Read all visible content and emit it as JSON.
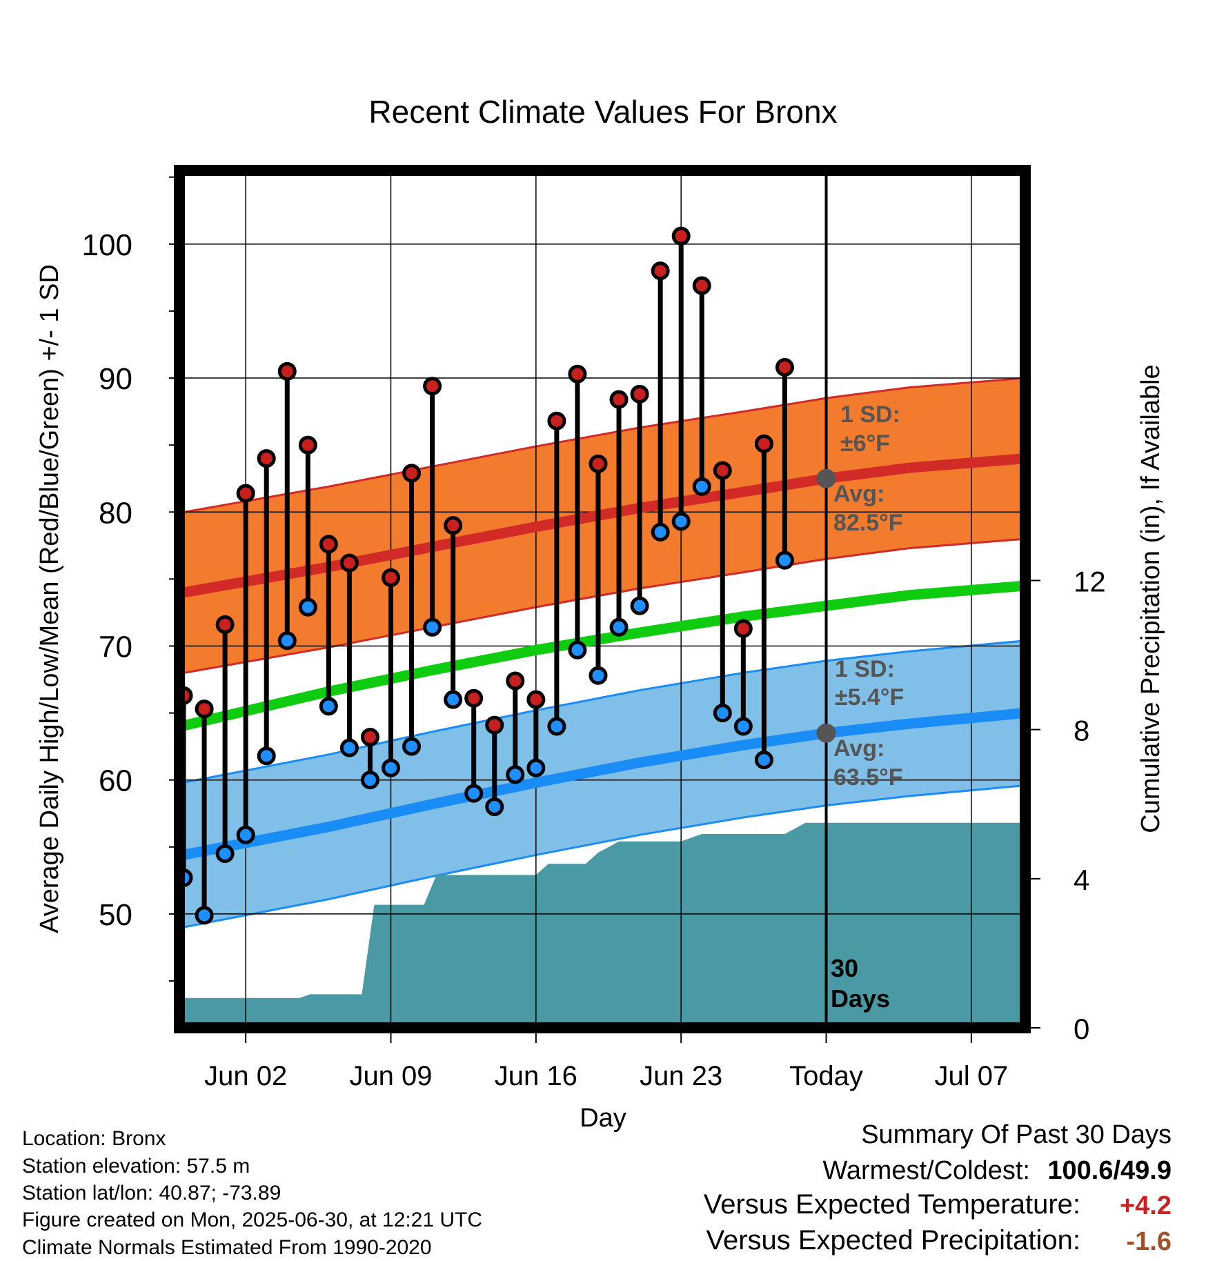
{
  "chart_data": {
    "type": "line",
    "title": "Recent Climate Values For Bronx",
    "xlabel": "Day",
    "ylabel": "Average Daily High/Low/Mean (Red/Blue/Green) +/- 1 SD",
    "y2label": "Cumulative Precipitation (in), If Available",
    "ylim": [
      41.5,
      105.5
    ],
    "y2lim": [
      0,
      23.0
    ],
    "xlim": [
      -2.2,
      38.6
    ],
    "grid": true,
    "yticks": [
      50,
      60,
      70,
      80,
      90,
      100
    ],
    "y2ticks": [
      0,
      4,
      8,
      12
    ],
    "xtick_labels": [
      {
        "day": 1,
        "label": "Jun 02"
      },
      {
        "day": 8,
        "label": "Jun 09"
      },
      {
        "day": 15,
        "label": "Jun 16"
      },
      {
        "day": 22,
        "label": "Jun 23"
      },
      {
        "day": 29,
        "label": "Today"
      },
      {
        "day": 36,
        "label": "Jul 07"
      }
    ],
    "today_day": 29,
    "daily_days": [
      -2,
      -1,
      0,
      1,
      2,
      3,
      4,
      5,
      6,
      7,
      8,
      9,
      10,
      11,
      12,
      13,
      14,
      15,
      16,
      17,
      18,
      19,
      20,
      21,
      22,
      23,
      24,
      25,
      26,
      27,
      28
    ],
    "series": [
      {
        "name": "High",
        "color": "#c8201f",
        "values": [
          66.3,
          65.3,
          71.6,
          81.4,
          84.0,
          90.5,
          85.0,
          77.6,
          76.2,
          63.2,
          75.1,
          82.9,
          89.4,
          79.0,
          66.1,
          64.1,
          67.4,
          66.0,
          86.8,
          90.3,
          83.6,
          88.4,
          88.8,
          98.0,
          100.6,
          96.9,
          83.1,
          71.3,
          85.1,
          90.8,
          null
        ]
      },
      {
        "name": "Low",
        "color": "#1f8fff",
        "values": [
          52.7,
          49.9,
          54.5,
          55.9,
          61.8,
          70.4,
          72.9,
          65.5,
          62.4,
          60.0,
          60.9,
          62.5,
          71.4,
          66.0,
          59.0,
          58.0,
          60.4,
          60.9,
          64.0,
          69.7,
          67.8,
          71.4,
          73.0,
          78.5,
          79.3,
          81.9,
          65.0,
          64.0,
          61.5,
          76.4,
          null
        ]
      }
    ],
    "normals": {
      "x": [
        -2.7,
        5,
        10,
        15,
        20,
        25,
        29,
        33,
        38.6
      ],
      "high_avg": [
        73.8,
        75.9,
        77.4,
        78.9,
        80.3,
        81.5,
        82.5,
        83.3,
        84.0
      ],
      "high_sd": 6,
      "mean_avg": [
        63.8,
        66.6,
        68.2,
        69.7,
        71.0,
        72.2,
        73.0,
        73.8,
        74.5
      ],
      "low_avg": [
        54.2,
        56.5,
        58.2,
        59.8,
        61.3,
        62.6,
        63.5,
        64.2,
        65.0
      ],
      "low_sd": 5.4,
      "colors": {
        "high_band": "#f27b2e",
        "high_line": "#d22a26",
        "mean_line": "#10cc10",
        "low_band": "#80c0e8",
        "low_line": "#1a8cf5"
      }
    },
    "precip": {
      "color": "#4a9aa6",
      "x": [
        -2.7,
        -2.0,
        2.9,
        3.6,
        4.1,
        6.6,
        7.2,
        9.6,
        10.2,
        15.0,
        15.6,
        17.4,
        18.0,
        19.0,
        22.0,
        23.0,
        27.0,
        28.0,
        38.6
      ],
      "values": [
        0.0,
        0.8,
        0.8,
        0.8,
        0.9,
        0.9,
        3.3,
        3.3,
        4.1,
        4.1,
        4.4,
        4.4,
        4.7,
        5.0,
        5.0,
        5.2,
        5.2,
        5.5,
        5.5
      ]
    },
    "annotations": {
      "high_sd": "1 SD:",
      "high_sd_value": "±6°F",
      "high_avg_label": "Avg:",
      "high_avg_value": "82.5°F",
      "low_sd": "1 SD:",
      "low_sd_value": "±5.4°F",
      "low_avg_label": "Avg:",
      "low_avg_value": "63.5°F",
      "days_number": "30",
      "days_word": "Days"
    }
  },
  "info": {
    "location": "Location: Bronx",
    "elevation": "Station elevation: 57.5 m",
    "latlon": "Station lat/lon: 40.87; -73.89",
    "created": "Figure created on Mon, 2025-06-30, at 12:21 UTC",
    "normals": "Climate Normals Estimated From 1990-2020"
  },
  "summary": {
    "title": "Summary Of Past 30 Days",
    "warmest_label": "Warmest/Coldest:",
    "warmest_value": "100.6/49.9",
    "temp_label": "Versus Expected Temperature:",
    "temp_value": "+4.2",
    "temp_color": "#cc2222",
    "precip_label": "Versus Expected Precipitation:",
    "precip_value": "-1.6",
    "precip_color": "#a0522d"
  }
}
